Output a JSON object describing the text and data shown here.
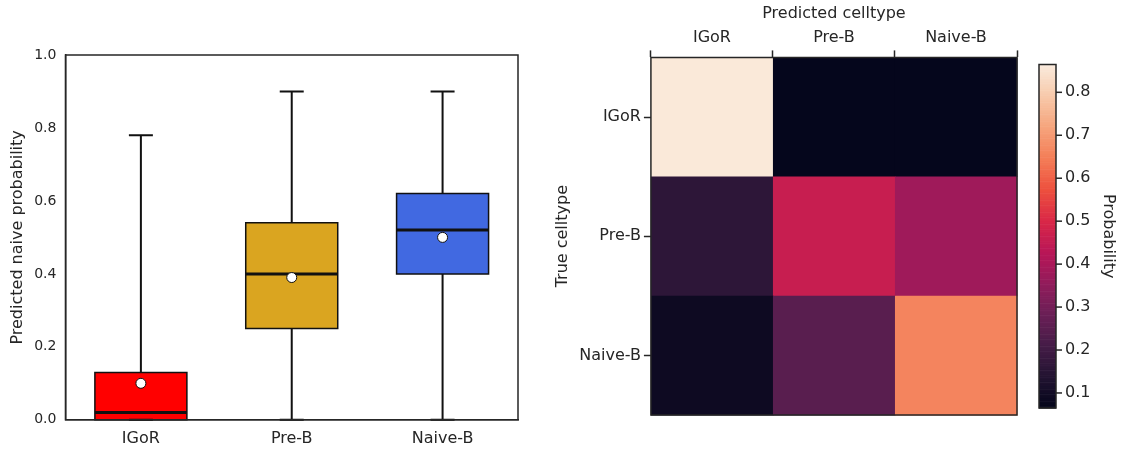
{
  "chart_data": [
    {
      "type": "box",
      "ylabel": "Predicted naive probability",
      "categories": [
        "IGoR",
        "Pre-B",
        "Naive-B"
      ],
      "colors": [
        "#ff0000",
        "#daa520",
        "#4169e1"
      ],
      "boxes": [
        {
          "low": 0.0,
          "q1": 0.0,
          "median": 0.02,
          "q3": 0.13,
          "high": 0.78,
          "mean": 0.1
        },
        {
          "low": 0.0,
          "q1": 0.25,
          "median": 0.4,
          "q3": 0.54,
          "high": 0.9,
          "mean": 0.39
        },
        {
          "low": 0.0,
          "q1": 0.4,
          "median": 0.52,
          "q3": 0.62,
          "high": 0.9,
          "mean": 0.5
        }
      ],
      "ylim": [
        0,
        1
      ],
      "yticks": [
        {
          "value": 0,
          "label": "0.0"
        },
        0.2,
        0.4,
        0.6,
        0.8,
        {
          "value": 1,
          "label": "1.0"
        }
      ],
      "grid": false,
      "legend": false
    },
    {
      "type": "heatmap",
      "xlabel": "Predicted celltype",
      "ylabel": "True celltype",
      "clabel": "Probability",
      "categories": [
        "IGoR",
        "Pre-B",
        "Naive-B"
      ],
      "y_categories": [
        "IGoR",
        "Pre-B",
        "Naive-B"
      ],
      "cells": [
        [
          0.86,
          0.07,
          0.07
        ],
        [
          0.16,
          0.46,
          0.38
        ],
        [
          0.09,
          0.25,
          0.66
        ]
      ],
      "clim": [
        0.065,
        0.865
      ],
      "cticks": [
        0.1,
        0.2,
        0.3,
        0.4,
        0.5,
        0.6,
        0.7,
        0.8
      ]
    }
  ]
}
